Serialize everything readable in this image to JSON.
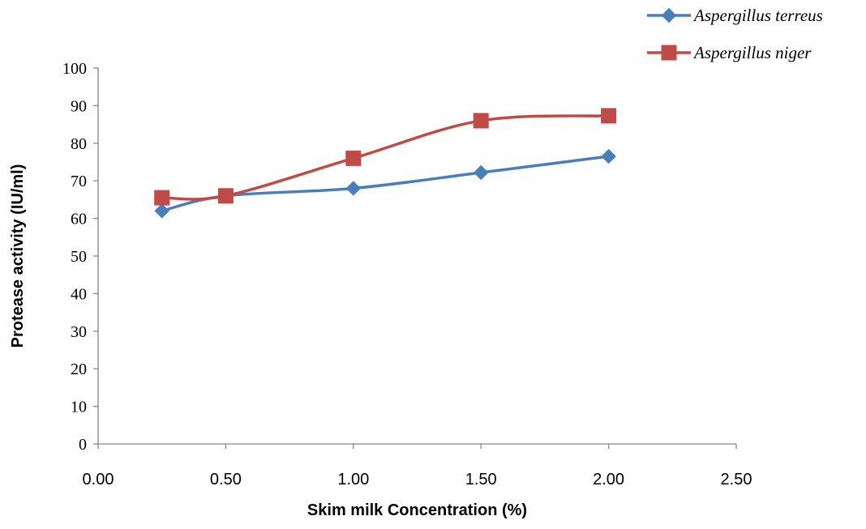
{
  "chart_data": {
    "type": "line",
    "title": "",
    "xlabel": "Skim milk Concentration (%)",
    "ylabel": "Protease activity (IU/ml)",
    "xlim": [
      0,
      2.5
    ],
    "ylim": [
      0,
      100
    ],
    "x_ticks": [
      "0.00",
      "0.50",
      "1.00",
      "1.50",
      "2.00",
      "2.50"
    ],
    "y_ticks": [
      "0",
      "10",
      "20",
      "30",
      "40",
      "50",
      "60",
      "70",
      "80",
      "90",
      "100"
    ],
    "grid": false,
    "legend_position": "top-right",
    "series": [
      {
        "name": "Aspergillus terreus",
        "color": "#4A7EBB",
        "marker": "diamond",
        "x": [
          0.25,
          0.5,
          1.0,
          1.5,
          2.0
        ],
        "y": [
          62,
          66,
          68,
          72.2,
          76.5
        ]
      },
      {
        "name": "Aspergillus niger",
        "color": "#BE4B48",
        "marker": "square",
        "x": [
          0.25,
          0.5,
          1.0,
          1.5,
          2.0
        ],
        "y": [
          65.5,
          66,
          76,
          86,
          87.3
        ]
      }
    ]
  }
}
